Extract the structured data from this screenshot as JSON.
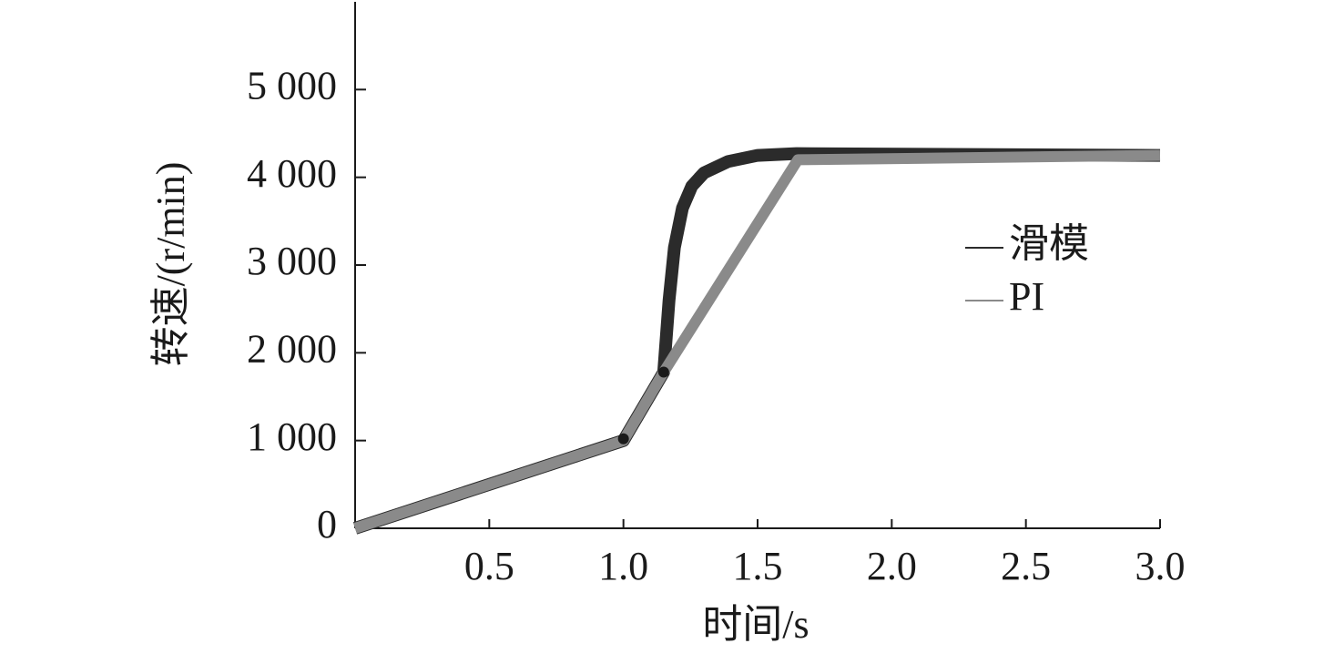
{
  "chart_data": {
    "type": "line",
    "xlabel": "时间/s",
    "ylabel": "转速/(r/min)",
    "xlim": [
      0,
      3
    ],
    "ylim": [
      0,
      6000
    ],
    "xticks": [
      0.5,
      {
        "value": 1,
        "label": "1.0"
      },
      1.5,
      {
        "value": 2,
        "label": "2.0"
      },
      2.5,
      {
        "value": 3,
        "label": "3.0"
      }
    ],
    "yticks": [
      0,
      {
        "value": 1000,
        "label": "1 000"
      },
      {
        "value": 2000,
        "label": "2 000"
      },
      {
        "value": 3000,
        "label": "3 000"
      },
      {
        "value": 4000,
        "label": "4 000"
      },
      {
        "value": 5000,
        "label": "5 000"
      }
    ],
    "legend": "right",
    "series": [
      {
        "name": "滑模",
        "color": "#2b2b2b",
        "x": [
          0,
          1,
          1.15,
          1.17,
          1.19,
          1.22,
          1.255,
          1.3,
          1.39,
          1.5,
          1.645,
          3
        ],
        "values": [
          0,
          1000,
          1780,
          2600,
          3200,
          3650,
          3900,
          4050,
          4180,
          4250,
          4270,
          4250
        ]
      },
      {
        "name": "PI",
        "color": "#8a8a8a",
        "x": [
          0,
          1,
          1.15,
          1.65,
          3
        ],
        "values": [
          0,
          1000,
          1780,
          4200,
          4250
        ]
      }
    ],
    "markers": {
      "color": "#1a1a1a",
      "x": [
        1,
        1.15
      ],
      "y": [
        1020,
        1780
      ]
    }
  }
}
